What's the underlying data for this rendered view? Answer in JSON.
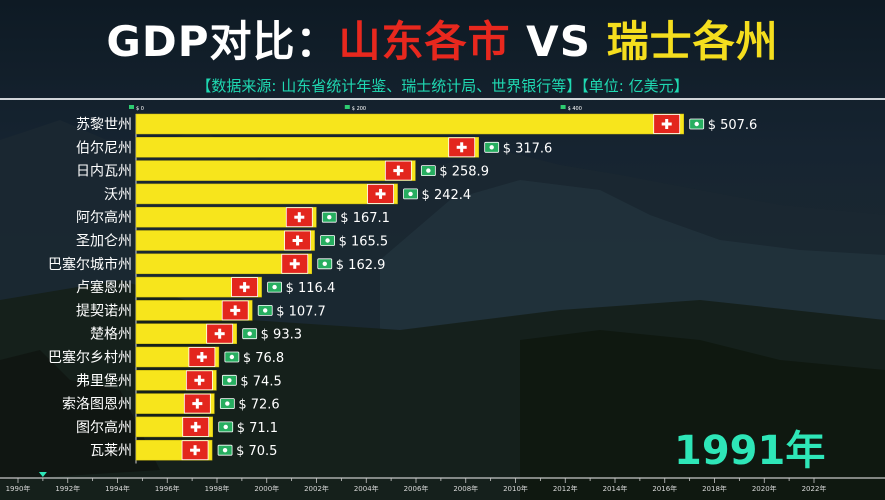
{
  "title": {
    "part1": "GDP对比：",
    "part2": "山东各市",
    "part3": " VS ",
    "part4": "瑞士各州"
  },
  "subtitle": "【数据来源: 山东省统计年鉴、瑞士统计局、世界银行等】【单位: 亿美元】",
  "year_display": "1991年",
  "colors": {
    "bar": "#f7e51c",
    "bar_edge": "#c9b810",
    "flag": "#e3261d",
    "value_text": "#ffffff",
    "label_text": "#ffffff",
    "title_red": "#e8281e",
    "title_yellow": "#f5de1e",
    "subtitle": "#1fd9b2",
    "year": "#2ee6b8"
  },
  "chart_data": {
    "type": "bar",
    "orientation": "horizontal",
    "value_prefix": "$ ",
    "top_axis_ticks": [
      {
        "value": 0,
        "label": "$ 0"
      },
      {
        "value": 200,
        "label": "$ 200"
      },
      {
        "value": 400,
        "label": "$ 400"
      }
    ],
    "x_max": 548,
    "categories": [
      "苏黎世州",
      "伯尔尼州",
      "日内瓦州",
      "沃州",
      "阿尔高州",
      "圣加仑州",
      "巴塞尔城市州",
      "卢塞恩州",
      "提契诺州",
      "楚格州",
      "巴塞尔乡村州",
      "弗里堡州",
      "索洛图恩州",
      "图尔高州",
      "瓦莱州"
    ],
    "values": [
      507.6,
      317.6,
      258.9,
      242.4,
      167.1,
      165.5,
      162.9,
      116.4,
      107.7,
      93.3,
      76.8,
      74.5,
      72.6,
      71.1,
      70.5
    ],
    "value_labels": [
      "507.6",
      "317.6",
      "258.9",
      "242.4",
      "167.1",
      "165.5",
      "162.9",
      "116.4",
      "107.7",
      "93.3",
      "76.8",
      "74.5",
      "72.6",
      "71.1",
      "70.5"
    ],
    "timeline": {
      "labels": [
        "1990年",
        "1992年",
        "1994年",
        "1996年",
        "1998年",
        "2000年",
        "2002年",
        "2004年",
        "2006年",
        "2008年",
        "2010年",
        "2012年",
        "2014年",
        "2016年",
        "2018年",
        "2020年",
        "2022年"
      ],
      "start": 1990,
      "end": 2022,
      "current": 1991
    }
  }
}
